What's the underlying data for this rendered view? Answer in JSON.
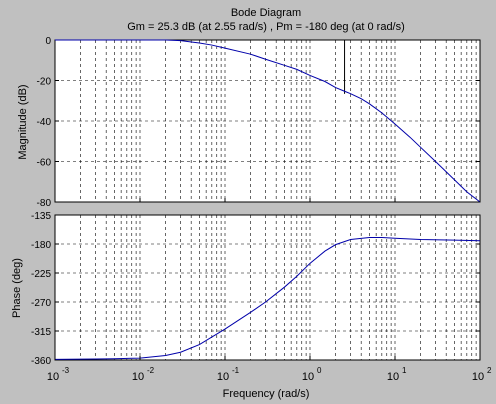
{
  "chart_data": [
    {
      "type": "line",
      "title": "Bode Diagram",
      "subtitle": "Gm = 25.3 dB (at 2.55 rad/s) ,  Pm = -180 deg (at 0 rad/s)",
      "ylabel": "Magnitude (dB)",
      "xscale": "log",
      "xlim": [
        0.001,
        100
      ],
      "ylim": [
        -80,
        0
      ],
      "yticks": [
        "0",
        "-20",
        "-40",
        "-60",
        "-80"
      ],
      "grid": true,
      "gain_margin_marker_x": 2.55,
      "series": [
        {
          "color": "#0000aa",
          "x": [
            0.001,
            0.003,
            0.01,
            0.02,
            0.03,
            0.05,
            0.07,
            0.1,
            0.2,
            0.3,
            0.5,
            0.7,
            1,
            1.5,
            2,
            2.55,
            3,
            4,
            5,
            7,
            10,
            15,
            20,
            30,
            50,
            70,
            100
          ],
          "values": [
            0,
            0,
            0,
            0,
            -0.3,
            -1.5,
            -2.5,
            -4,
            -7,
            -9.5,
            -12.5,
            -14.5,
            -17.5,
            -20.5,
            -23.5,
            -25.3,
            -26.5,
            -29,
            -31.5,
            -36,
            -41.5,
            -48,
            -53,
            -60,
            -69,
            -75,
            -80
          ]
        }
      ]
    },
    {
      "type": "line",
      "xlabel": "Frequency  (rad/s)",
      "ylabel": "Phase (deg)",
      "xscale": "log",
      "xlim": [
        0.001,
        100
      ],
      "ylim": [
        -360,
        -135
      ],
      "yticks": [
        "-135",
        "-180",
        "-225",
        "-270",
        "-315",
        "-360"
      ],
      "xticks": [
        {
          "base": "10",
          "exp": "-3"
        },
        {
          "base": "10",
          "exp": "-2"
        },
        {
          "base": "10",
          "exp": "-1"
        },
        {
          "base": "10",
          "exp": "0"
        },
        {
          "base": "10",
          "exp": "1"
        },
        {
          "base": "10",
          "exp": "2"
        }
      ],
      "grid": true,
      "series": [
        {
          "color": "#0000aa",
          "x": [
            0.001,
            0.003,
            0.005,
            0.01,
            0.02,
            0.03,
            0.05,
            0.1,
            0.2,
            0.3,
            0.5,
            0.7,
            1,
            1.5,
            2,
            3,
            5,
            7,
            10,
            20,
            50,
            100
          ],
          "values": [
            -359,
            -358.5,
            -358,
            -357,
            -353,
            -348,
            -336,
            -312,
            -286,
            -270,
            -247,
            -230,
            -210,
            -191,
            -181,
            -173,
            -170,
            -170,
            -171,
            -173,
            -174,
            -175
          ]
        }
      ]
    }
  ]
}
